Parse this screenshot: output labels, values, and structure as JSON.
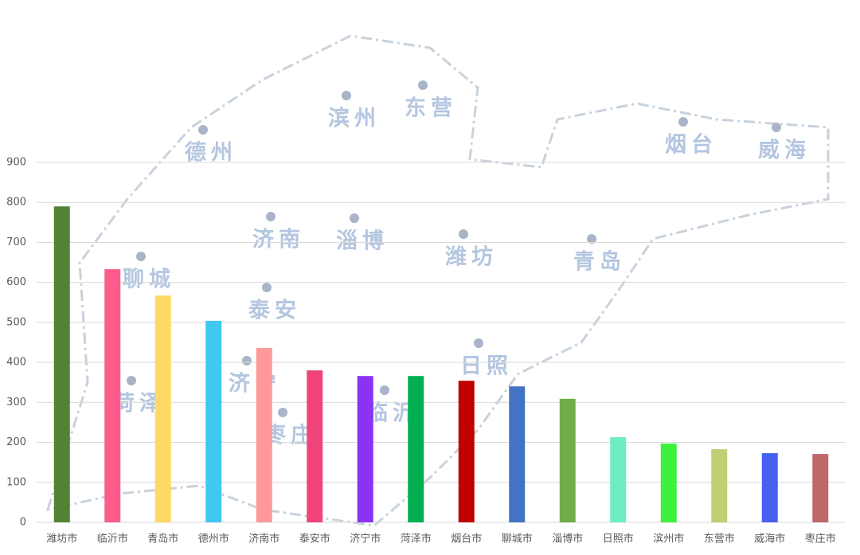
{
  "chart_data": {
    "type": "bar",
    "categories": [
      "潍坊市",
      "临沂市",
      "青岛市",
      "德州市",
      "济南市",
      "泰安市",
      "济宁市",
      "菏泽市",
      "烟台市",
      "聊城市",
      "淄博市",
      "日照市",
      "滨州市",
      "东营市",
      "威海市",
      "枣庄市"
    ],
    "values": [
      790,
      633,
      567,
      504,
      436,
      380,
      366,
      366,
      354,
      340,
      309,
      213,
      197,
      183,
      173,
      171
    ],
    "colors": [
      "#548235",
      "#ff5b8c",
      "#ffd966",
      "#3fc8f0",
      "#ff9999",
      "#f0447a",
      "#8a33f5",
      "#00b050",
      "#c00000",
      "#4472c4",
      "#70ad47",
      "#6eedc4",
      "#3df23d",
      "#c0cf73",
      "#4660f0",
      "#c0676a"
    ],
    "ylim": [
      0,
      900
    ],
    "yticks": [
      0,
      100,
      200,
      300,
      400,
      500,
      600,
      700,
      800,
      900
    ],
    "grid": true
  },
  "background_map": {
    "labels": [
      "德州",
      "滨州",
      "东营",
      "烟台",
      "威海",
      "济南",
      "淄博",
      "潍坊",
      "青岛",
      "聊城",
      "泰安",
      "日照",
      "济宁",
      "菏泽",
      "临沂",
      "枣庄"
    ]
  }
}
